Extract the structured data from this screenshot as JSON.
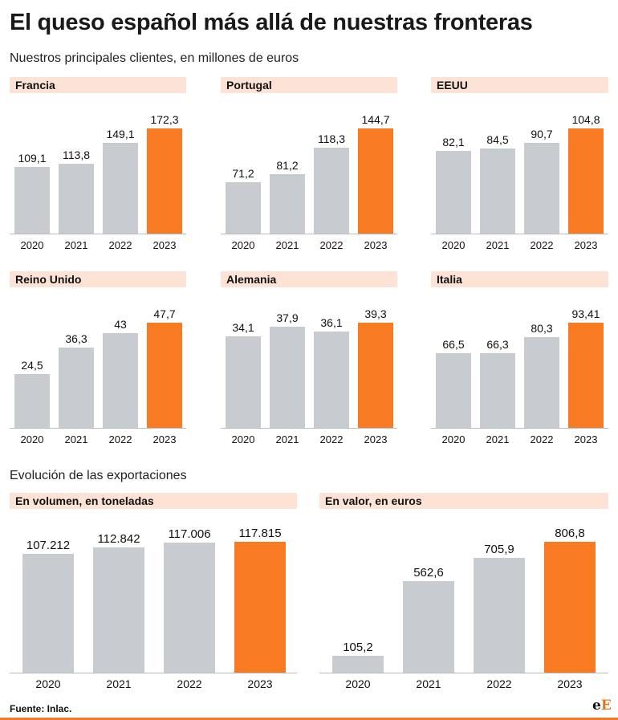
{
  "title": "El queso español más allá de nuestras fronteras",
  "subtitle": "Nuestros principales clientes, en millones de euros",
  "section2_title": "Evolución de las exportaciones",
  "source": "Fuente: Inlac.",
  "logo": {
    "part1": "e",
    "part2": "E"
  },
  "colors": {
    "bar_default": "#c8ccd1",
    "bar_highlight": "#f87b23",
    "header_bg": "#fde3d6",
    "accent_line": "#f07a2a"
  },
  "chart_data": [
    {
      "type": "bar",
      "title": "Francia",
      "categories": [
        "2020",
        "2021",
        "2022",
        "2023"
      ],
      "values": [
        109.1,
        113.8,
        149.1,
        172.3
      ],
      "labels": [
        "109,1",
        "113,8",
        "149,1",
        "172,3"
      ],
      "ylim": [
        0,
        172.3
      ],
      "highlight_index": 3
    },
    {
      "type": "bar",
      "title": "Portugal",
      "categories": [
        "2020",
        "2021",
        "2022",
        "2023"
      ],
      "values": [
        71.2,
        81.2,
        118.3,
        144.7
      ],
      "labels": [
        "71,2",
        "81,2",
        "118,3",
        "144,7"
      ],
      "ylim": [
        0,
        144.7
      ],
      "highlight_index": 3
    },
    {
      "type": "bar",
      "title": "EEUU",
      "categories": [
        "2020",
        "2021",
        "2022",
        "2023"
      ],
      "values": [
        82.1,
        84.5,
        90.7,
        104.8
      ],
      "labels": [
        "82,1",
        "84,5",
        "90,7",
        "104,8"
      ],
      "ylim": [
        0,
        104.8
      ],
      "highlight_index": 3
    },
    {
      "type": "bar",
      "title": "Reino Unido",
      "categories": [
        "2020",
        "2021",
        "2022",
        "2023"
      ],
      "values": [
        24.5,
        36.3,
        43,
        47.7
      ],
      "labels": [
        "24,5",
        "36,3",
        "43",
        "47,7"
      ],
      "ylim": [
        0,
        47.7
      ],
      "highlight_index": 3
    },
    {
      "type": "bar",
      "title": "Alemania",
      "categories": [
        "2020",
        "2021",
        "2022",
        "2023"
      ],
      "values": [
        34.1,
        37.9,
        36.1,
        39.3
      ],
      "labels": [
        "34,1",
        "37,9",
        "36,1",
        "39,3"
      ],
      "ylim": [
        0,
        39.3
      ],
      "highlight_index": 3
    },
    {
      "type": "bar",
      "title": "Italia",
      "categories": [
        "2020",
        "2021",
        "2022",
        "2023"
      ],
      "values": [
        66.5,
        66.3,
        80.3,
        93.41
      ],
      "labels": [
        "66,5",
        "66,3",
        "80,3",
        "93,41"
      ],
      "ylim": [
        0,
        93.41
      ],
      "highlight_index": 3
    },
    {
      "type": "bar",
      "title": "En volumen, en toneladas",
      "categories": [
        "2020",
        "2021",
        "2022",
        "2023"
      ],
      "values": [
        107212,
        112842,
        117006,
        117815
      ],
      "labels": [
        "107.212",
        "112.842",
        "117.006",
        "117.815"
      ],
      "ylim": [
        0,
        117815
      ],
      "highlight_index": 3
    },
    {
      "type": "bar",
      "title": "En valor, en euros",
      "categories": [
        "2020",
        "2021",
        "2022",
        "2023"
      ],
      "values": [
        105.2,
        562.6,
        705.9,
        806.8
      ],
      "labels": [
        "105,2",
        "562,6",
        "705,9",
        "806,8"
      ],
      "ylim": [
        0,
        806.8
      ],
      "highlight_index": 3
    }
  ]
}
